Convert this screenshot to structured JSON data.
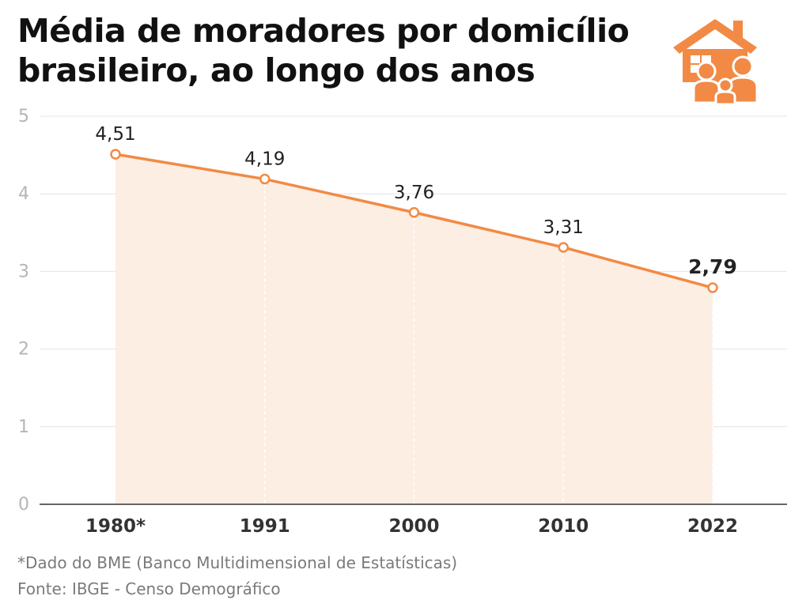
{
  "title": {
    "line1": "Média de moradores por domicílio",
    "line2": "brasileiro, ao longo dos anos"
  },
  "icon": "house-family-icon",
  "colors": {
    "accent": "#f28a45",
    "area_fill": "#fdeee3",
    "grid": "#e4e4e4",
    "axis_tick": "#b5b5b5",
    "text": "#222222"
  },
  "chart_data": {
    "type": "line",
    "categories": [
      "1980*",
      "1991",
      "2000",
      "2010",
      "2022"
    ],
    "series": [
      {
        "values": [
          4.51,
          4.19,
          3.76,
          3.31,
          2.79
        ]
      }
    ],
    "data_labels": [
      "4,51",
      "4,19",
      "3,76",
      "3,31",
      "2,79"
    ],
    "highlight_last": true,
    "y_ticks": [
      0,
      1,
      2,
      3,
      4,
      5
    ],
    "ylim": [
      0,
      5
    ],
    "grid": true,
    "area_fill": true
  },
  "footnotes": {
    "note": "*Dado do BME (Banco Multidimensional de Estatísticas)",
    "source": "Fonte: IBGE - Censo Demográfico"
  }
}
